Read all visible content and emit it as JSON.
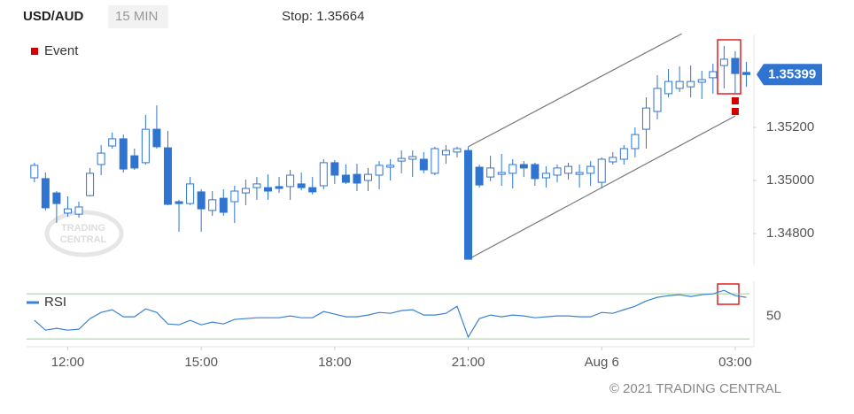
{
  "chart_data": [
    {
      "type": "candlestick",
      "title": "USD/AUD",
      "subtitle": "15 MIN",
      "annotation": "Stop: 1.35664",
      "watermark": [
        "TRADING",
        "CENTRAL"
      ],
      "up_color": "#ffffff",
      "down_color": "#2f74d0",
      "wick_color": "#2f74d0",
      "open": [
        1.3501,
        1.35007,
        1.34953,
        1.34877,
        1.34873,
        1.34943,
        1.3506,
        1.3513,
        1.35157,
        1.35093,
        1.35067,
        1.35193,
        1.35123,
        1.3492,
        1.34913,
        1.34957,
        1.34887,
        1.34933,
        1.3492,
        1.34953,
        1.34973,
        1.34973,
        1.34977,
        1.34977,
        1.34987,
        1.34973,
        1.3498,
        1.35067,
        1.3502,
        1.35023,
        1.35,
        1.3502,
        1.3505,
        1.35073,
        1.3508,
        1.3508,
        1.35027,
        1.35097,
        1.35107,
        1.35113,
        1.3505,
        1.35013,
        1.35023,
        1.35027,
        1.3506,
        1.3506,
        1.3501,
        1.3502,
        1.35027,
        1.35023,
        1.35027,
        1.34993,
        1.3507,
        1.3508,
        1.3512,
        1.35193,
        1.3526,
        1.35327,
        1.35347,
        1.35353,
        1.3537,
        1.35387,
        1.35433,
        1.3546,
        1.35407
      ],
      "high": [
        1.35067,
        1.3503,
        1.3496,
        1.3494,
        1.3492,
        1.35047,
        1.35133,
        1.3518,
        1.35173,
        1.3512,
        1.35247,
        1.35283,
        1.35187,
        1.34927,
        1.35013,
        1.34967,
        1.3496,
        1.34967,
        1.3498,
        1.35003,
        1.35013,
        1.35023,
        1.35013,
        1.3504,
        1.3503,
        1.35013,
        1.3508,
        1.35077,
        1.3506,
        1.35063,
        1.35047,
        1.35073,
        1.3508,
        1.35113,
        1.35113,
        1.35107,
        1.35127,
        1.35133,
        1.35127,
        1.35127,
        1.3506,
        1.35093,
        1.351,
        1.3508,
        1.35073,
        1.35067,
        1.35053,
        1.3506,
        1.35067,
        1.3506,
        1.35073,
        1.35087,
        1.35107,
        1.35133,
        1.352,
        1.35313,
        1.35397,
        1.3542,
        1.3543,
        1.35433,
        1.35413,
        1.3544,
        1.35507,
        1.35487,
        1.35447
      ],
      "low": [
        1.34993,
        1.34887,
        1.3484,
        1.34863,
        1.3486,
        1.3494,
        1.3502,
        1.3512,
        1.3503,
        1.3504,
        1.3506,
        1.3512,
        1.34907,
        1.34807,
        1.34907,
        1.34807,
        1.34867,
        1.34867,
        1.3484,
        1.34907,
        1.34927,
        1.34927,
        1.34953,
        1.34927,
        1.34963,
        1.34947,
        1.34967,
        1.34987,
        1.34987,
        1.3496,
        1.3496,
        1.34967,
        1.35,
        1.35027,
        1.35013,
        1.35027,
        1.3502,
        1.35063,
        1.35087,
        1.34703,
        1.34973,
        1.34997,
        1.3498,
        1.3497,
        1.35013,
        1.3498,
        1.34973,
        1.34993,
        1.35003,
        1.34973,
        1.3498,
        1.3497,
        1.3506,
        1.3506,
        1.35087,
        1.3512,
        1.3523,
        1.35313,
        1.35333,
        1.35313,
        1.35307,
        1.35327,
        1.35347,
        1.35327,
        1.35353
      ],
      "close": [
        1.35057,
        1.34897,
        1.34913,
        1.34893,
        1.349,
        1.35027,
        1.35103,
        1.35157,
        1.35043,
        1.35047,
        1.35193,
        1.35127,
        1.3491,
        1.34913,
        1.34987,
        1.34893,
        1.34927,
        1.3488,
        1.3496,
        1.3497,
        1.34987,
        1.3496,
        1.3497,
        1.3502,
        1.34973,
        1.34957,
        1.35067,
        1.3502,
        1.34993,
        1.3499,
        1.35023,
        1.35057,
        1.35057,
        1.35083,
        1.3509,
        1.3504,
        1.3512,
        1.35113,
        1.3512,
        1.34703,
        1.34983,
        1.35047,
        1.3503,
        1.3506,
        1.35047,
        1.35007,
        1.35027,
        1.35047,
        1.35053,
        1.3503,
        1.35053,
        1.3508,
        1.35087,
        1.3512,
        1.35173,
        1.35273,
        1.35347,
        1.35373,
        1.35373,
        1.35373,
        1.3538,
        1.3541,
        1.35457,
        1.35403,
        1.35399
      ],
      "last_price": 1.35399,
      "last_price_color": "#2f74d0",
      "channel": {
        "color": "#777777",
        "lines": [
          {
            "x": [
              39,
              58.2
            ],
            "values": [
              1.35127,
              1.35553
            ]
          },
          {
            "x": [
              39,
              63
            ],
            "values": [
              1.34703,
              1.35243
            ]
          }
        ]
      },
      "events": {
        "name": "Event",
        "color": "#d40000",
        "x": [
          63,
          63
        ],
        "values": [
          1.353,
          1.3526
        ]
      },
      "xlim": [
        -0.7,
        64.6
      ],
      "ylim": [
        1.3468,
        1.3555
      ],
      "yticks": [
        {
          "value": 1.348,
          "label": "1.34800"
        },
        {
          "value": 1.35,
          "label": "1.35000"
        },
        {
          "value": 1.352,
          "label": "1.35200"
        }
      ]
    },
    {
      "type": "line",
      "series": [
        {
          "name": "RSI",
          "color": "#3b82d4",
          "values": [
            46.5,
            37.8,
            39.4,
            37.8,
            38.6,
            48.0,
            53.5,
            55.9,
            49.6,
            49.6,
            56.7,
            53.5,
            43.3,
            42.5,
            46.5,
            42.5,
            44.9,
            43.3,
            47.3,
            48.0,
            48.8,
            48.8,
            48.8,
            50.4,
            48.8,
            48.8,
            54.3,
            52.0,
            49.6,
            49.6,
            51.2,
            53.5,
            52.7,
            55.1,
            55.9,
            51.2,
            51.2,
            52.7,
            59.0,
            31.6,
            48.0,
            51.2,
            49.6,
            51.2,
            50.4,
            48.8,
            49.6,
            50.4,
            50.4,
            49.6,
            49.6,
            53.5,
            52.7,
            55.9,
            59.0,
            63.7,
            66.9,
            68.4,
            69.2,
            67.6,
            69.2,
            70.0,
            73.1,
            68.4,
            66.9
          ]
        }
      ],
      "levels": [
        30,
        70
      ],
      "level_color": "#9ccc9c",
      "xlim": [
        -0.7,
        64.6
      ],
      "ylim": [
        23,
        78
      ],
      "yticks": [
        50
      ],
      "xticks": [
        {
          "value": 3,
          "label": "12:00"
        },
        {
          "value": 15,
          "label": "15:00"
        },
        {
          "value": 27,
          "label": "18:00"
        },
        {
          "value": 39,
          "label": "21:00"
        },
        {
          "value": 51,
          "label": "Aug 6"
        },
        {
          "value": 63,
          "label": "03:00"
        }
      ]
    }
  ],
  "copyright": "© 2021 TRADING CENTRAL"
}
